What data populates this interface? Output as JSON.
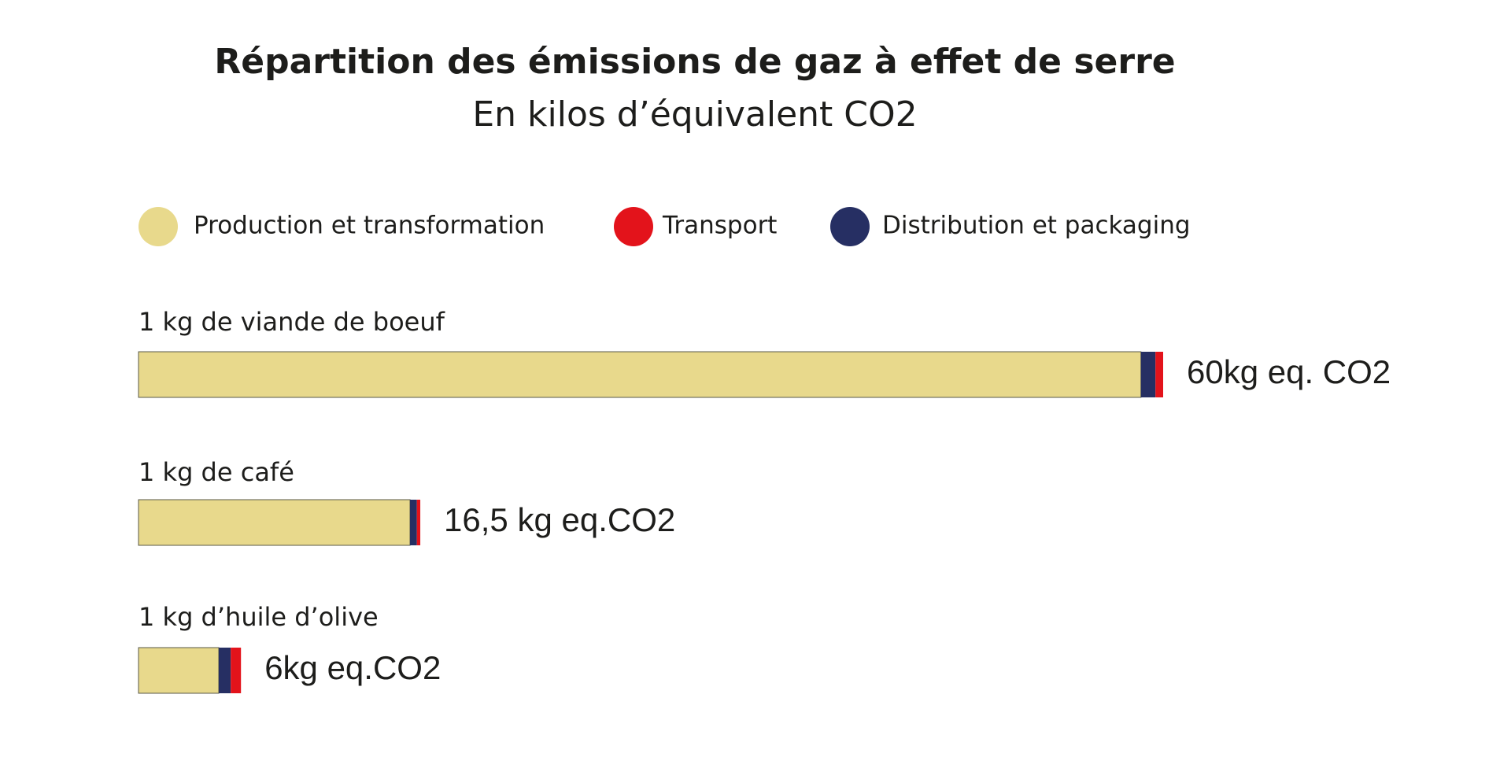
{
  "chart_data": {
    "type": "stacked-bar-horizontal",
    "title": "Répartition des émissions de gaz à effet de serre",
    "subtitle": "En kilos d’équivalent CO2",
    "categories": [
      "1 kg de viande de boeuf",
      "1 kg de café",
      "1 kg d’huile d’olive"
    ],
    "series": [
      {
        "name": "Production et transformation",
        "color": "#e8d98c",
        "values": [
          58.7,
          15.9,
          4.7
        ]
      },
      {
        "name": "Distribution et packaging",
        "color": "#262f63",
        "values": [
          0.85,
          0.4,
          0.7
        ]
      },
      {
        "name": "Transport",
        "color": "#e3131b",
        "values": [
          0.45,
          0.2,
          0.6
        ]
      }
    ],
    "totals": [
      60,
      16.5,
      6
    ],
    "total_labels": [
      "60kg eq. CO2",
      "16,5 kg eq.CO2",
      "6kg eq.CO2"
    ]
  }
}
